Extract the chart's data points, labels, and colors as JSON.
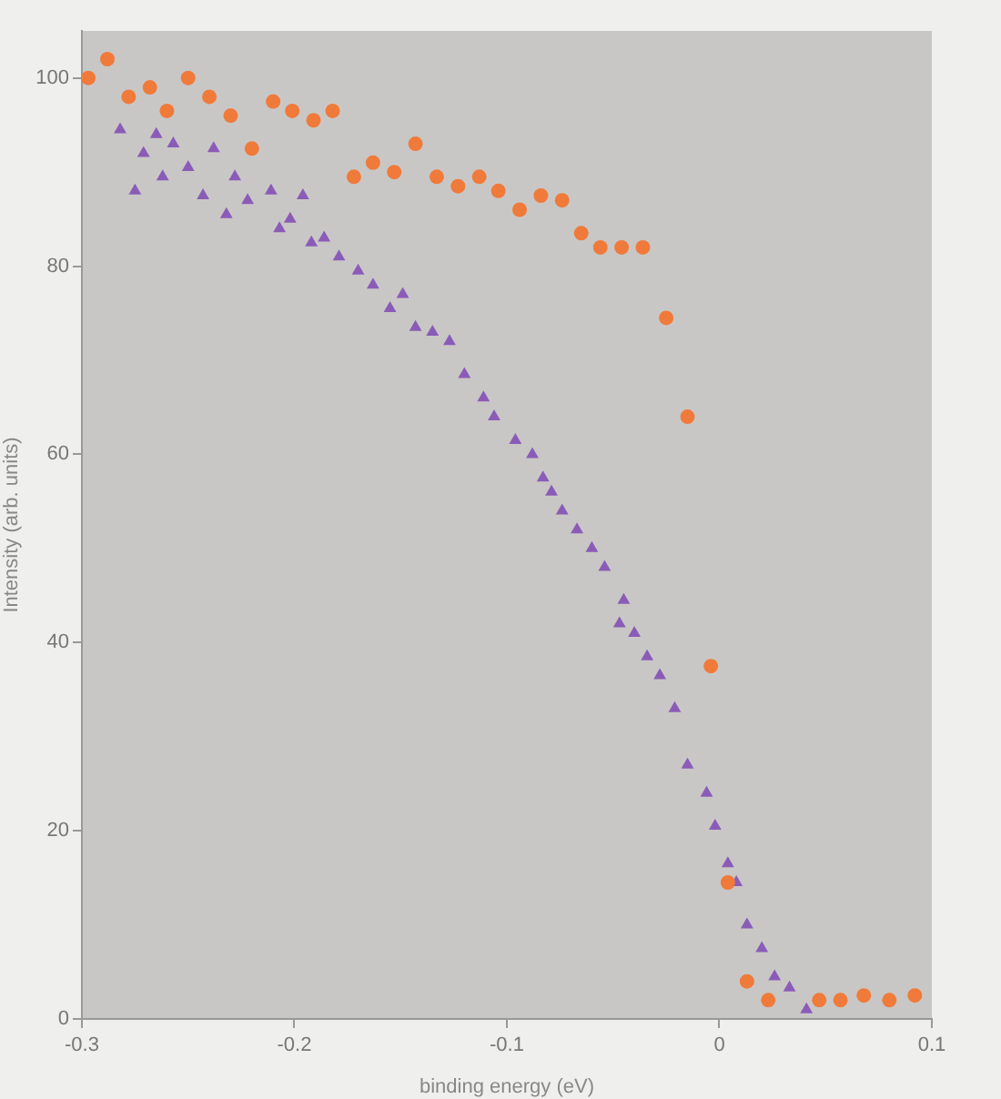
{
  "chart_data": {
    "type": "scatter",
    "xlabel": "binding energy (eV)",
    "ylabel": "Intensity (arb. units)",
    "xlim": [
      -0.3,
      0.1
    ],
    "xticks": [
      -0.3,
      -0.2,
      -0.1,
      0,
      0.1
    ],
    "ylim": [
      0,
      105
    ],
    "yticks": [
      0,
      20,
      40,
      60,
      80,
      100
    ],
    "grid": false,
    "legend": false,
    "series": [
      {
        "color": "#f07a3a",
        "marker": "circle",
        "x": [
          -0.297,
          -0.288,
          -0.278,
          -0.268,
          -0.26,
          -0.25,
          -0.24,
          -0.23,
          -0.22,
          -0.21,
          -0.201,
          -0.191,
          -0.182,
          -0.172,
          -0.163,
          -0.153,
          -0.143,
          -0.133,
          -0.123,
          -0.113,
          -0.104,
          -0.094,
          -0.084,
          -0.074,
          -0.065,
          -0.056,
          -0.046,
          -0.036,
          -0.025,
          -0.015,
          -0.004,
          0.004,
          0.013,
          0.023,
          0.047,
          0.057,
          0.068,
          0.08,
          0.092
        ],
        "values": [
          100,
          102,
          98,
          99,
          96.5,
          100,
          98,
          96,
          92.5,
          97.5,
          96.5,
          95.5,
          96.5,
          89.5,
          91,
          90,
          93,
          89.5,
          88.5,
          89.5,
          88,
          86,
          87.5,
          87,
          83.5,
          82,
          82,
          82,
          74.5,
          64,
          37.5,
          14.5,
          4,
          2,
          2,
          2,
          2.5,
          2,
          2.5
        ]
      },
      {
        "color": "#8a5cb8",
        "marker": "triangle",
        "x": [
          -0.282,
          -0.275,
          -0.271,
          -0.265,
          -0.262,
          -0.257,
          -0.25,
          -0.243,
          -0.238,
          -0.232,
          -0.228,
          -0.222,
          -0.211,
          -0.207,
          -0.202,
          -0.196,
          -0.192,
          -0.186,
          -0.179,
          -0.17,
          -0.163,
          -0.155,
          -0.149,
          -0.143,
          -0.135,
          -0.127,
          -0.12,
          -0.111,
          -0.106,
          -0.096,
          -0.088,
          -0.083,
          -0.079,
          -0.074,
          -0.067,
          -0.06,
          -0.054,
          -0.045,
          -0.047,
          -0.04,
          -0.034,
          -0.028,
          -0.021,
          -0.015,
          -0.006,
          -0.002,
          0.004,
          0.008,
          0.013,
          0.02,
          0.026,
          0.033,
          0.041
        ],
        "values": [
          94.5,
          88,
          92,
          94,
          89.5,
          93,
          90.5,
          87.5,
          92.5,
          85.5,
          89.5,
          87,
          88,
          84,
          85,
          87.5,
          82.5,
          83,
          81,
          79.5,
          78,
          75.5,
          77,
          73.5,
          73,
          72,
          68.5,
          66,
          64,
          61.5,
          60,
          57.5,
          56,
          54,
          52,
          50,
          48,
          44.5,
          42,
          41,
          38.5,
          36.5,
          33,
          27,
          24,
          20.5,
          16.5,
          14.5,
          10,
          7.5,
          4.5,
          3.3,
          1
        ]
      }
    ]
  }
}
